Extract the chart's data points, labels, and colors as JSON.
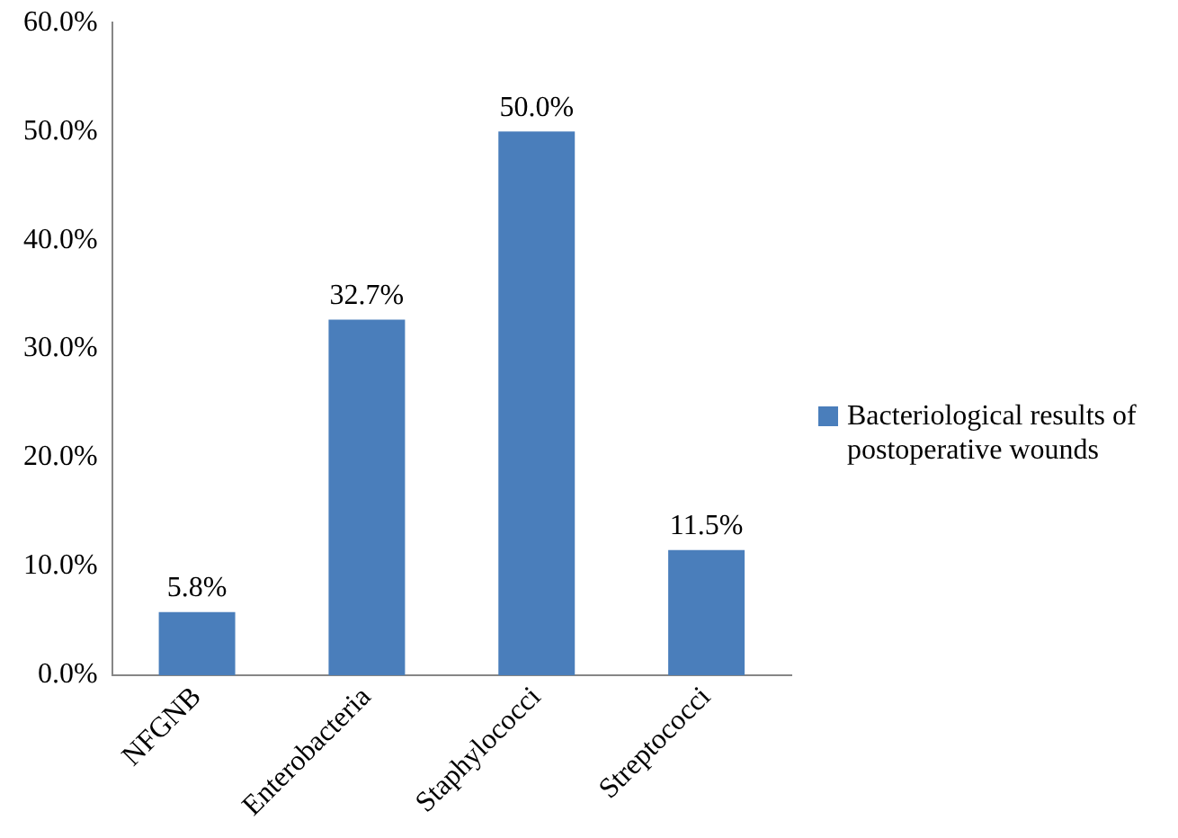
{
  "chart_data": {
    "type": "bar",
    "categories": [
      "NFGNB",
      "Enterobacteria",
      "Staphylococci",
      "Streptococci"
    ],
    "series": [
      {
        "name": "Bacteriological results of postoperative wounds",
        "color": "#4a7ebb",
        "values": [
          5.8,
          32.7,
          50.0,
          11.5
        ],
        "value_labels": [
          "5.8%",
          "32.7%",
          "50.0%",
          "11.5%"
        ]
      }
    ],
    "ylim": [
      0,
      60
    ],
    "yticks": [
      {
        "value": 0,
        "label": "0.0%"
      },
      {
        "value": 10,
        "label": "10.0%"
      },
      {
        "value": 20,
        "label": "20.0%"
      },
      {
        "value": 30,
        "label": "30.0%"
      },
      {
        "value": 40,
        "label": "40.0%"
      },
      {
        "value": 50,
        "label": "50.0%"
      },
      {
        "value": 60,
        "label": "60.0%"
      }
    ],
    "legend": "right"
  }
}
